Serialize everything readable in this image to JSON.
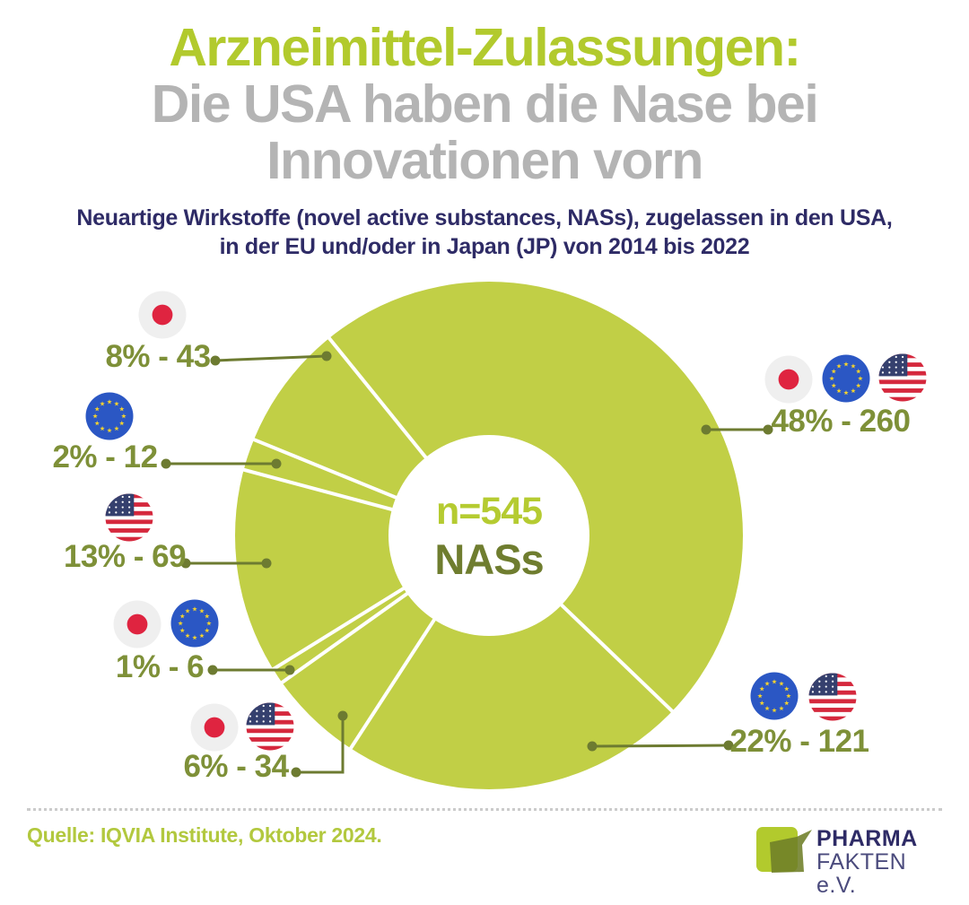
{
  "title": {
    "line1": "Arzneimittel-Zulassungen:",
    "line2": "Die USA haben die Nase bei",
    "line3": "Innovationen vorn"
  },
  "subtitle": {
    "line1": "Neuartige Wirkstoffe (novel active substances, NASs), zugelassen in den USA,",
    "line2": "in der EU und/oder in Japan (JP) von 2014 bis 2022"
  },
  "center": {
    "total_label": "n=545",
    "unit_label": "NASs"
  },
  "source": "Quelle: IQVIA Institute, Oktober 2024.",
  "logo": {
    "line1": "PHARMA",
    "line2": "FAKTEN e.V."
  },
  "palette": {
    "accent_green": "#b2ca2d",
    "donut_green": "#c1cf46",
    "dark_olive": "#6f7d2f",
    "label_olive": "#7e9038",
    "leader_olive": "#6d7b31",
    "title_gray": "#b4b4b4",
    "navy": "#2e2b66",
    "divider_gray": "#cbcbcb",
    "flag_jp_bg": "#efefef",
    "flag_jp_red": "#df2440",
    "flag_eu_blue": "#2b57c4",
    "flag_eu_star": "#f6d32d",
    "flag_us_red": "#d5283d",
    "flag_us_navy": "#35406e"
  },
  "chart_data": {
    "type": "pie",
    "subtype": "donut",
    "title": "Neuartige Wirkstoffe (NASs) zugelassen in USA, EU und/oder Japan, 2014-2022",
    "total": 545,
    "center_label_top": "n=545",
    "center_label_bottom": "NASs",
    "start_angle_deg_clockwise_from_top": 321,
    "legend_position": "around",
    "segments": [
      {
        "id": "jp-eu-us",
        "regions": [
          "JP",
          "EU",
          "US"
        ],
        "flags": [
          "JP",
          "EU",
          "US"
        ],
        "percent": 48,
        "count": 260,
        "display": "48% - 260"
      },
      {
        "id": "eu-us",
        "regions": [
          "EU",
          "US"
        ],
        "flags": [
          "EU",
          "US"
        ],
        "percent": 22,
        "count": 121,
        "display": "22% - 121"
      },
      {
        "id": "jp-us",
        "regions": [
          "JP",
          "US"
        ],
        "flags": [
          "JP",
          "US"
        ],
        "percent": 6,
        "count": 34,
        "display": "6% - 34"
      },
      {
        "id": "jp-eu",
        "regions": [
          "JP",
          "EU"
        ],
        "flags": [
          "JP",
          "EU"
        ],
        "percent": 1,
        "count": 6,
        "display": "1% - 6"
      },
      {
        "id": "us",
        "regions": [
          "US"
        ],
        "flags": [
          "US"
        ],
        "percent": 13,
        "count": 69,
        "display": "13% - 69"
      },
      {
        "id": "eu",
        "regions": [
          "EU"
        ],
        "flags": [
          "EU"
        ],
        "percent": 2,
        "count": 12,
        "display": "2% - 12"
      },
      {
        "id": "jp",
        "regions": [
          "JP"
        ],
        "flags": [
          "JP"
        ],
        "percent": 8,
        "count": 43,
        "display": "8% - 43"
      }
    ]
  }
}
